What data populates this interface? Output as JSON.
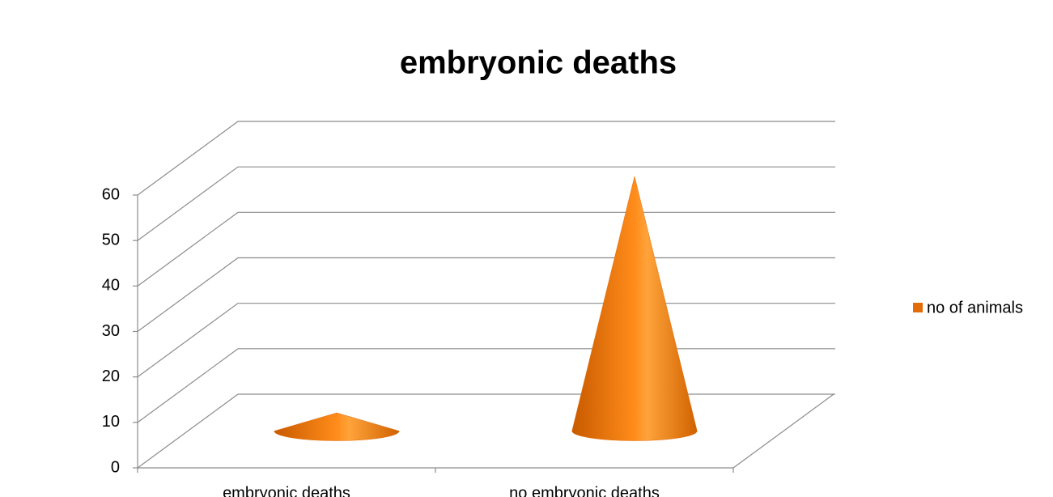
{
  "chart_data": {
    "type": "cone3d",
    "title": "embryonic deaths",
    "categories": [
      "embryonic deaths",
      "no embryonic deaths"
    ],
    "series": [
      {
        "name": "no of animals",
        "color": "#e36c09",
        "values": [
          4,
          56
        ]
      }
    ],
    "ylim": [
      0,
      60
    ],
    "yticks": [
      0,
      10,
      20,
      30,
      40,
      50,
      60
    ],
    "grid": true,
    "legend": "right"
  }
}
